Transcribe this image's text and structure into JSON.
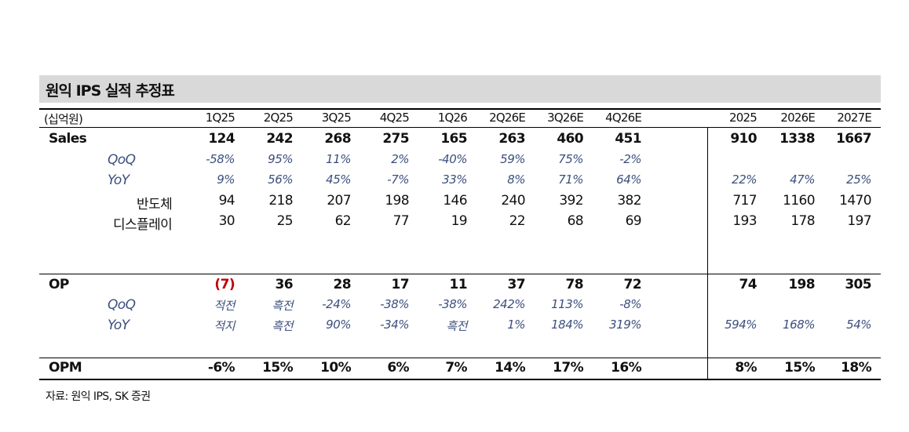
{
  "title": "원익 IPS 실적 추정표",
  "unit": "(십억원)",
  "columns": [
    "1Q25",
    "2Q25",
    "3Q25",
    "4Q25",
    "1Q26",
    "2Q26E",
    "3Q26E",
    "4Q26E",
    "2025",
    "2026E",
    "2027E"
  ],
  "rows": [
    {
      "label": "Sales",
      "values": [
        "124",
        "242",
        "268",
        "275",
        "165",
        "263",
        "460",
        "451",
        "910",
        "1338",
        "1667"
      ]
    },
    {
      "label": "QoQ",
      "values": [
        "-58%",
        "95%",
        "11%",
        "2%",
        "-40%",
        "59%",
        "75%",
        "-2%",
        "",
        "",
        ""
      ]
    },
    {
      "label": "YoY",
      "values": [
        "9%",
        "56%",
        "45%",
        "-7%",
        "33%",
        "8%",
        "71%",
        "64%",
        "22%",
        "47%",
        "25%"
      ]
    },
    {
      "label": "반도체",
      "values": [
        "94",
        "218",
        "207",
        "198",
        "146",
        "240",
        "392",
        "382",
        "717",
        "1160",
        "1470"
      ]
    },
    {
      "label": "디스플레이",
      "values": [
        "30",
        "25",
        "62",
        "77",
        "19",
        "22",
        "68",
        "69",
        "193",
        "178",
        "197"
      ]
    },
    {
      "label": "OP",
      "values": [
        "(7)",
        "36",
        "28",
        "17",
        "11",
        "37",
        "78",
        "72",
        "74",
        "198",
        "305"
      ]
    },
    {
      "label": "QoQ",
      "values": [
        "적전",
        "흑전",
        "-24%",
        "-38%",
        "-38%",
        "242%",
        "113%",
        "-8%",
        "",
        "",
        ""
      ]
    },
    {
      "label": "YoY",
      "values": [
        "적지",
        "흑전",
        "90%",
        "-34%",
        "흑전",
        "1%",
        "184%",
        "319%",
        "594%",
        "168%",
        "54%"
      ]
    },
    {
      "label": "OPM",
      "values": [
        "-6%",
        "15%",
        "10%",
        "6%",
        "7%",
        "14%",
        "17%",
        "16%",
        "8%",
        "15%",
        "18%"
      ]
    }
  ],
  "source": "자료: 원익 IPS, SK 증권",
  "colors": {
    "title_bg": "#d9d9d9",
    "italic_text": "#3c4f7d",
    "negative_red": "#c00000"
  }
}
